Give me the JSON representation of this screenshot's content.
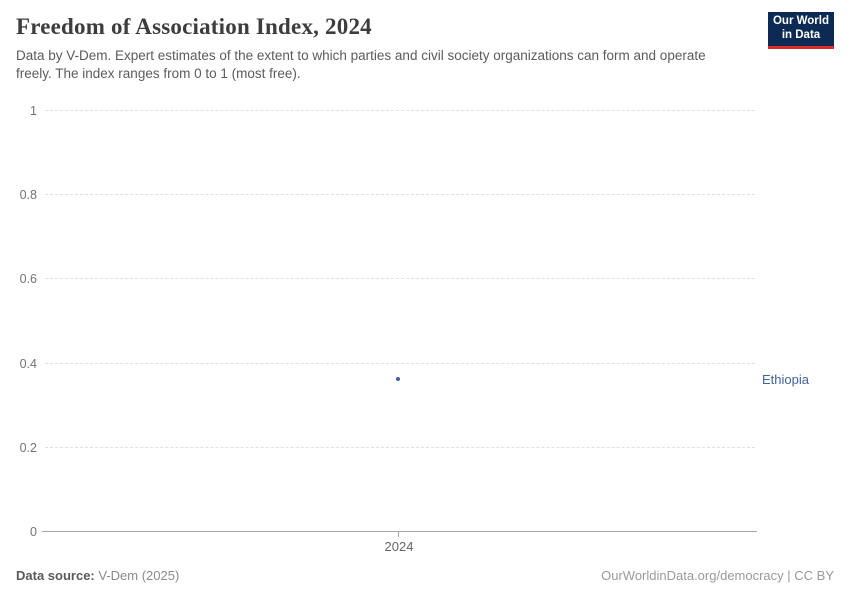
{
  "header": {
    "title": "Freedom of Association Index, 2024",
    "subtitle": "Data by V-Dem. Expert estimates of the extent to which parties and civil society organizations can form and operate freely. The index ranges from 0 to 1 (most free).",
    "logo": {
      "line1": "Our World",
      "line2": "in Data"
    }
  },
  "chart_data": {
    "type": "scatter",
    "title": "Freedom of Association Index, 2024",
    "xlabel": "",
    "ylabel": "",
    "ylim": [
      0,
      1
    ],
    "x": [
      2024
    ],
    "series": [
      {
        "name": "Ethiopia",
        "values": [
          0.36
        ]
      }
    ],
    "ytick_labels": [
      "1",
      "0.8",
      "0.6",
      "0.4",
      "0.2",
      "0"
    ],
    "xtick_labels": [
      "2024"
    ],
    "grid": "horizontal-dashed",
    "legend_position": "right-entity-label",
    "point_color": "#3d649c",
    "entity_label_color": "#3f639b"
  },
  "footer": {
    "source_label": "Data source:",
    "source_value": " V-Dem (2025)",
    "link": "OurWorldinData.org/democracy | CC BY"
  }
}
